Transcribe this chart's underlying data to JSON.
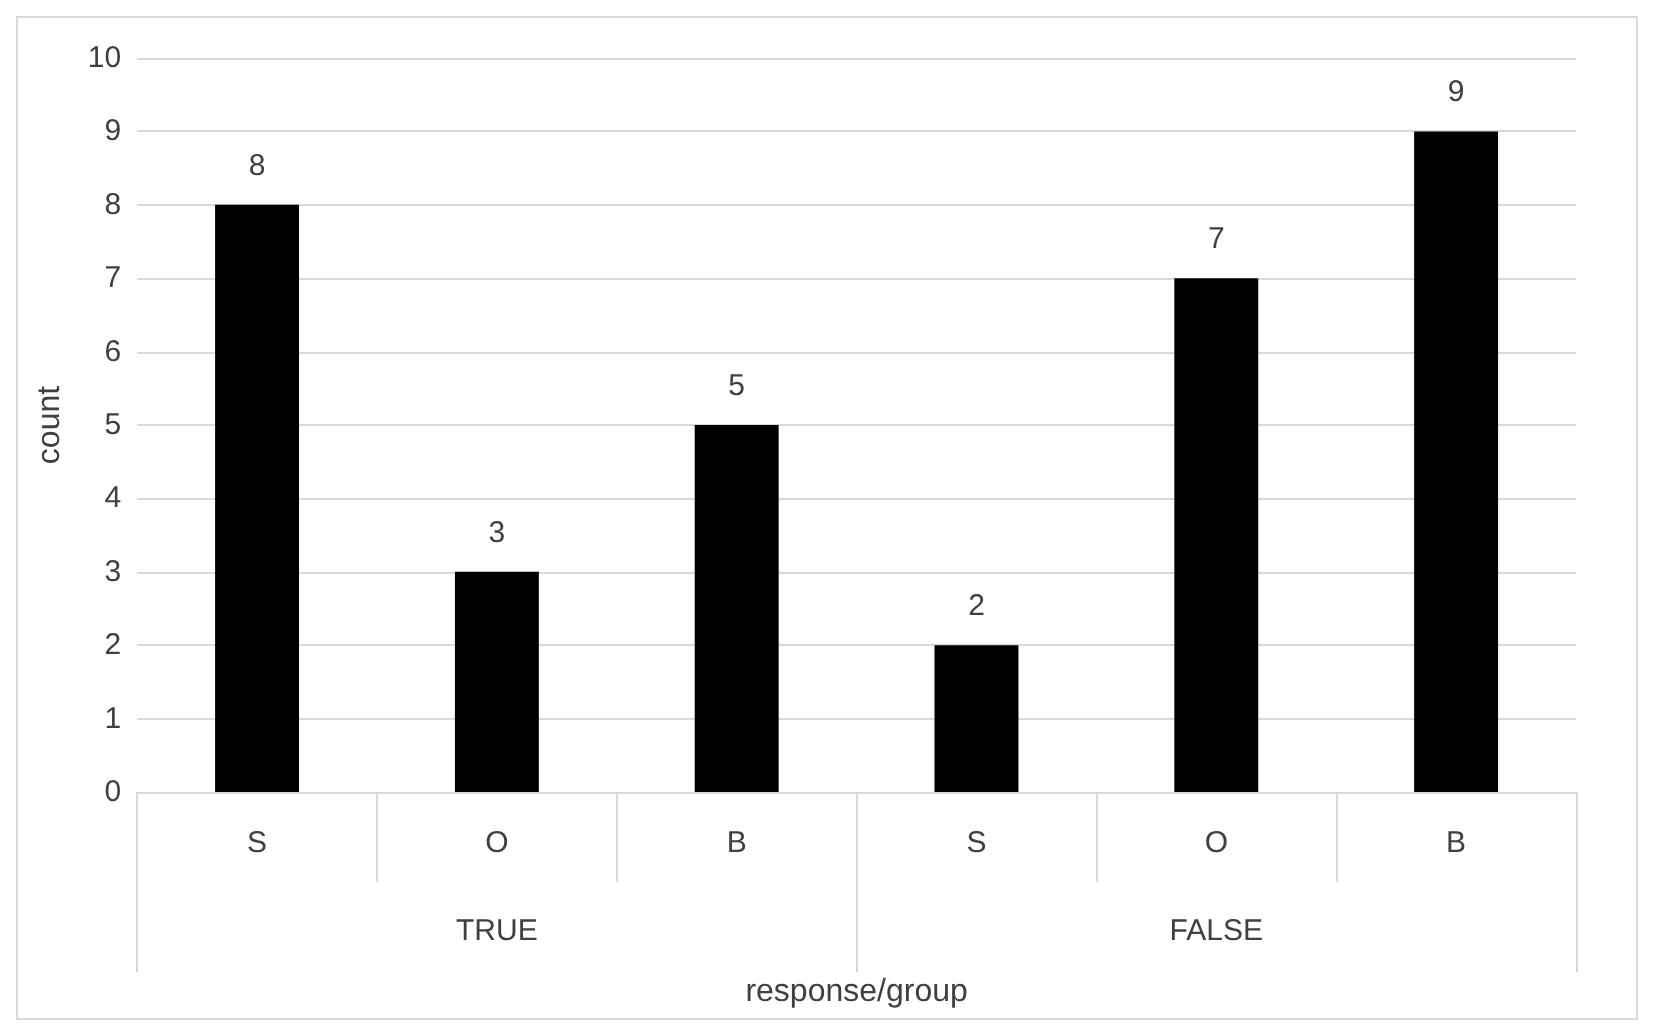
{
  "chart_data": {
    "type": "bar",
    "xlabel": "response/group",
    "ylabel": "count",
    "categories": [
      "S",
      "O",
      "B",
      "S",
      "O",
      "B"
    ],
    "values": [
      8,
      3,
      5,
      2,
      7,
      9
    ],
    "color": "#000000",
    "ylim": [
      0,
      10
    ],
    "yticks": [
      0,
      1,
      2,
      3,
      4,
      5,
      6,
      7,
      8,
      9,
      10
    ],
    "grid": "y",
    "data_labels": true,
    "annotations": [
      "TRUE",
      "FALSE"
    ]
  }
}
